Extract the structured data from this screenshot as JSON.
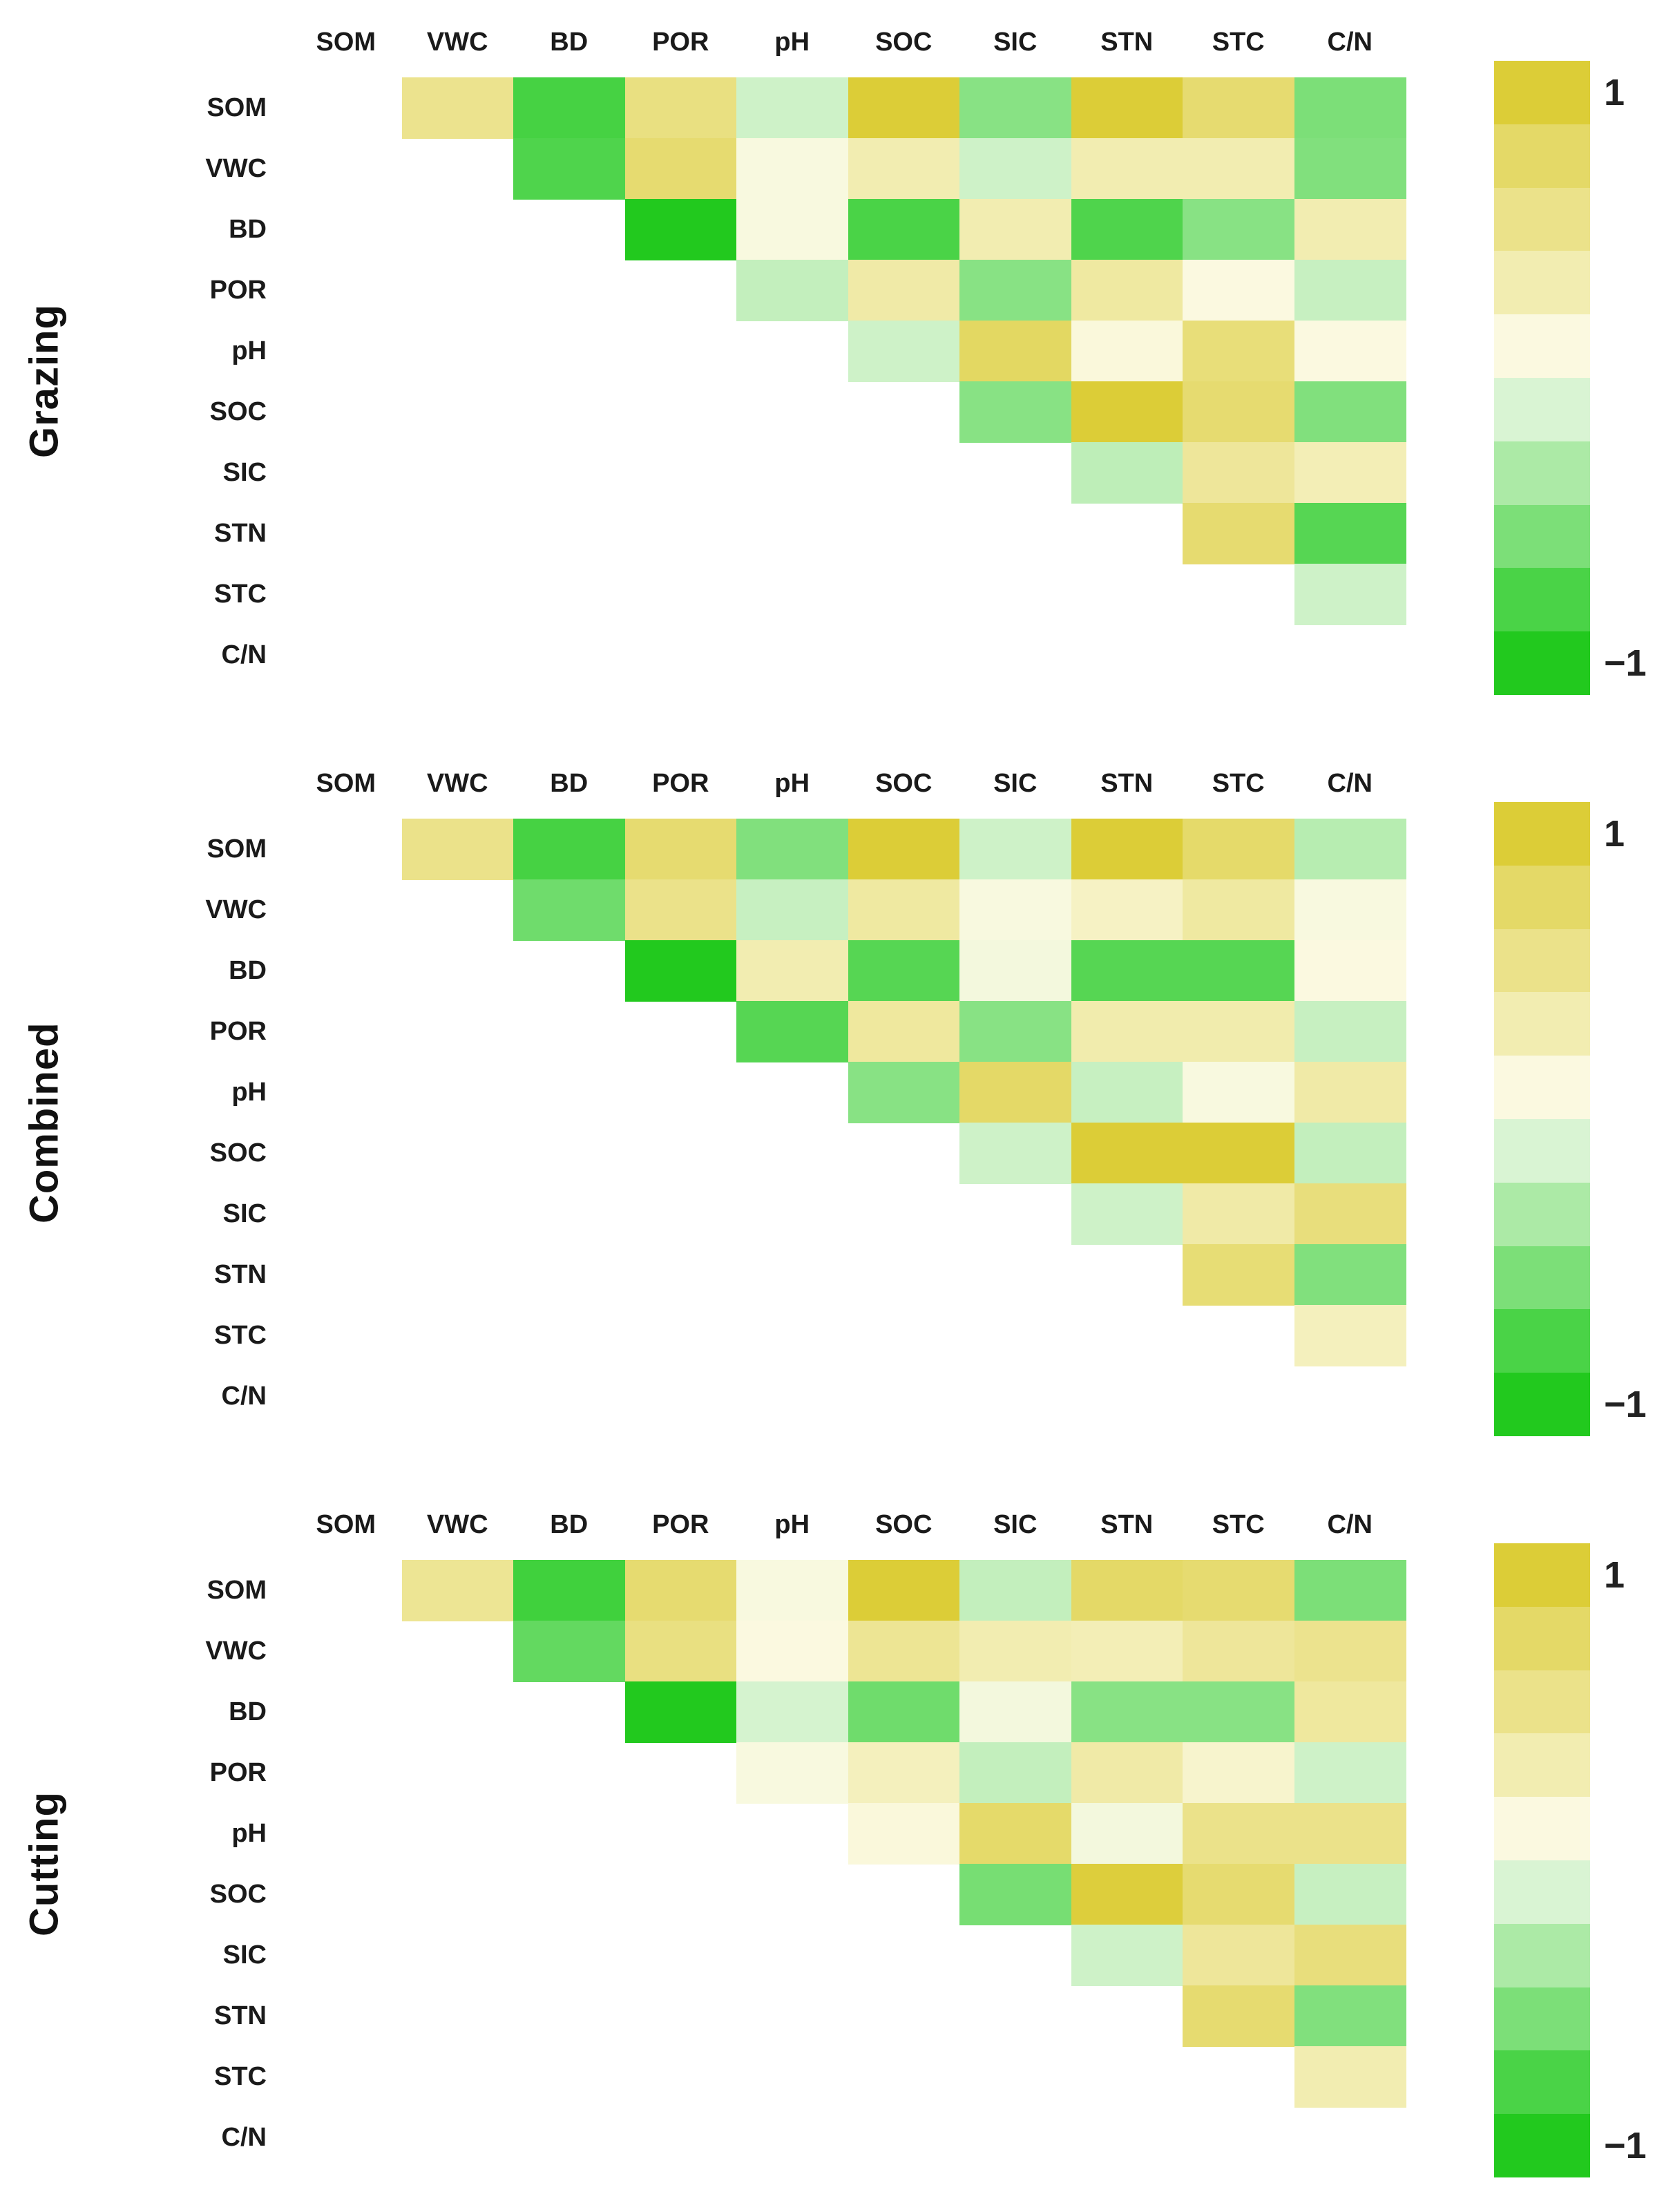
{
  "chart_data": {
    "type": "heatmap",
    "subtype": "upper-triangular correlation matrices (no diagonal), three stacked panels sharing the same variables",
    "variables": [
      "SOM",
      "VWC",
      "BD",
      "POR",
      "pH",
      "SOC",
      "SIC",
      "STN",
      "STC",
      "C/N"
    ],
    "value_range": [
      -1,
      1
    ],
    "grid": "off",
    "colorscale": {
      "min": -1,
      "max": 1,
      "max_color": "#dccd37",
      "mid_color": "#fbf9e0",
      "min_color": "#22c91e",
      "legend_position": "right",
      "legend_top_label": "1",
      "legend_bottom_label": "−1",
      "legend_segments": [
        "#dccd37",
        "#e4d967",
        "#ebe28a",
        "#f2edb1",
        "#fbf9e0",
        "#d9f4d3",
        "#aceaa6",
        "#7cdf78",
        "#4ad347",
        "#22c91e"
      ],
      "stops": [
        [
          1.0,
          "#d9ca2d"
        ],
        [
          0.9,
          "#dccd37"
        ],
        [
          0.7,
          "#e4d967"
        ],
        [
          0.5,
          "#ebe28a"
        ],
        [
          0.3,
          "#f2edb1"
        ],
        [
          0.1,
          "#fbf9e0"
        ],
        [
          -0.1,
          "#d9f4d3"
        ],
        [
          -0.3,
          "#aceaa6"
        ],
        [
          -0.5,
          "#7cdf78"
        ],
        [
          -0.7,
          "#4ad347"
        ],
        [
          -0.9,
          "#22c91e"
        ],
        [
          -1.0,
          "#1fc61b"
        ]
      ]
    },
    "panels": [
      {
        "title": "Grazing",
        "matrix": [
          [
            null,
            0.48,
            -0.72,
            0.55,
            -0.15,
            0.9,
            -0.45,
            0.9,
            0.65,
            -0.5
          ],
          [
            null,
            null,
            -0.68,
            0.65,
            0.08,
            0.3,
            -0.15,
            0.3,
            0.3,
            -0.48
          ],
          [
            null,
            null,
            null,
            -0.9,
            0.08,
            -0.7,
            0.3,
            -0.68,
            -0.45,
            0.3
          ],
          [
            null,
            null,
            null,
            null,
            -0.2,
            0.35,
            -0.45,
            0.38,
            0.1,
            -0.18
          ],
          [
            null,
            null,
            null,
            null,
            null,
            -0.15,
            0.72,
            0.12,
            0.6,
            0.1
          ],
          [
            null,
            null,
            null,
            null,
            null,
            null,
            -0.45,
            0.9,
            0.65,
            -0.48
          ],
          [
            null,
            null,
            null,
            null,
            null,
            null,
            null,
            -0.22,
            0.42,
            0.28
          ],
          [
            null,
            null,
            null,
            null,
            null,
            null,
            null,
            null,
            0.65,
            -0.65
          ],
          [
            null,
            null,
            null,
            null,
            null,
            null,
            null,
            null,
            null,
            -0.15
          ],
          [
            null,
            null,
            null,
            null,
            null,
            null,
            null,
            null,
            null,
            null
          ]
        ]
      },
      {
        "title": "Combined",
        "matrix": [
          [
            null,
            0.5,
            -0.72,
            0.65,
            -0.48,
            0.9,
            -0.15,
            0.9,
            0.68,
            -0.25
          ],
          [
            null,
            null,
            -0.55,
            0.5,
            -0.18,
            0.38,
            0.08,
            0.22,
            0.38,
            0.08
          ],
          [
            null,
            null,
            null,
            -0.9,
            0.3,
            -0.65,
            0.05,
            -0.65,
            -0.65,
            0.1
          ],
          [
            null,
            null,
            null,
            null,
            -0.65,
            0.4,
            -0.45,
            0.32,
            0.32,
            -0.18
          ],
          [
            null,
            null,
            null,
            null,
            null,
            -0.45,
            0.7,
            -0.18,
            0.08,
            0.35
          ],
          [
            null,
            null,
            null,
            null,
            null,
            null,
            -0.15,
            0.9,
            0.9,
            -0.2
          ],
          [
            null,
            null,
            null,
            null,
            null,
            null,
            null,
            -0.15,
            0.35,
            0.58
          ],
          [
            null,
            null,
            null,
            null,
            null,
            null,
            null,
            null,
            0.62,
            -0.48
          ],
          [
            null,
            null,
            null,
            null,
            null,
            null,
            null,
            null,
            null,
            0.25
          ],
          [
            null,
            null,
            null,
            null,
            null,
            null,
            null,
            null,
            null,
            null
          ]
        ]
      },
      {
        "title": "Cutting",
        "matrix": [
          [
            null,
            0.45,
            -0.75,
            0.65,
            0.08,
            0.9,
            -0.2,
            0.7,
            0.65,
            -0.5
          ],
          [
            null,
            null,
            -0.6,
            0.55,
            0.1,
            0.45,
            0.3,
            0.28,
            0.42,
            0.48
          ],
          [
            null,
            null,
            null,
            -0.9,
            -0.12,
            -0.55,
            0.05,
            -0.45,
            -0.45,
            0.4
          ],
          [
            null,
            null,
            null,
            null,
            0.08,
            0.25,
            -0.2,
            0.35,
            0.18,
            -0.15
          ],
          [
            null,
            null,
            null,
            null,
            null,
            0.12,
            0.68,
            0.05,
            0.5,
            0.5
          ],
          [
            null,
            null,
            null,
            null,
            null,
            null,
            -0.52,
            0.88,
            0.65,
            -0.18
          ],
          [
            null,
            null,
            null,
            null,
            null,
            null,
            null,
            -0.15,
            0.42,
            0.58
          ],
          [
            null,
            null,
            null,
            null,
            null,
            null,
            null,
            null,
            0.65,
            -0.48
          ],
          [
            null,
            null,
            null,
            null,
            null,
            null,
            null,
            null,
            null,
            0.3
          ],
          [
            null,
            null,
            null,
            null,
            null,
            null,
            null,
            null,
            null,
            null
          ]
        ]
      }
    ]
  }
}
